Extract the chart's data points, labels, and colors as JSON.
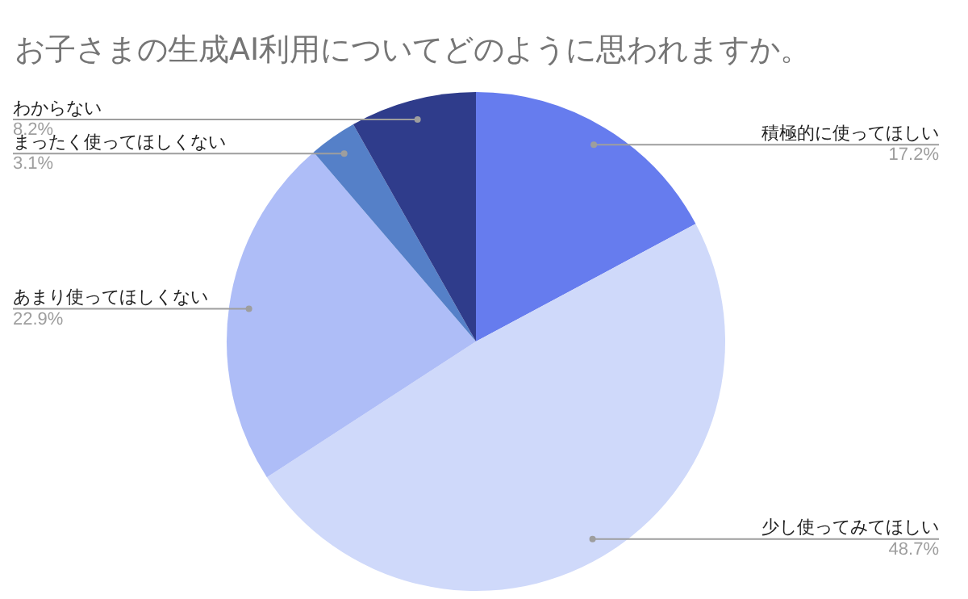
{
  "chart_data": {
    "type": "pie",
    "title": "お子さまの生成AI利用についてどのように思われますか。",
    "categories": [
      "積極的に使ってほしい",
      "少し使ってみてほしい",
      "あまり使ってほしくない",
      "まったく使ってほしくない",
      "わからない"
    ],
    "values": [
      17.2,
      48.7,
      22.9,
      3.1,
      8.2
    ],
    "value_labels": [
      "17.2%",
      "48.7%",
      "22.9%",
      "3.1%",
      "8.2%"
    ],
    "colors": [
      "#667cee",
      "#cfd9fa",
      "#aebdf7",
      "#5580c8",
      "#2f3c8b"
    ],
    "legend": false
  }
}
